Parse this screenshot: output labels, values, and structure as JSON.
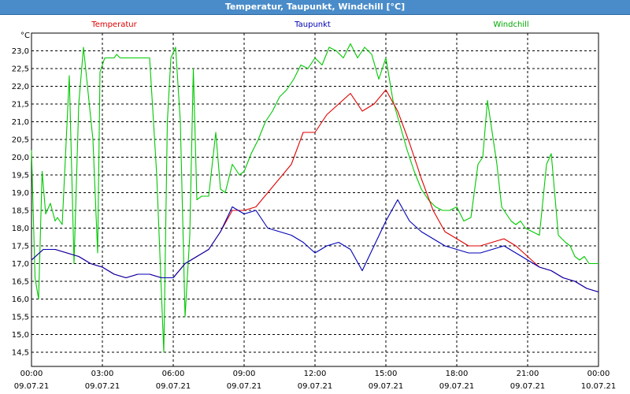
{
  "window": {
    "title": "Temperatur, Taupunkt, Windchill [°C]"
  },
  "chart_data": {
    "type": "line",
    "title": "Temperatur, Taupunkt, Windchill [°C]",
    "ylabel": "°C",
    "ylim": [
      14.1,
      23.5
    ],
    "y_ticks": [
      "14,5",
      "15,0",
      "15,5",
      "16,0",
      "16,5",
      "17,0",
      "17,5",
      "18,0",
      "18,5",
      "19,0",
      "19,5",
      "20,0",
      "20,5",
      "21,0",
      "21,5",
      "22,0",
      "22,5",
      "23,0"
    ],
    "x_range_hours": [
      0,
      24
    ],
    "x_ticks": [
      {
        "time": "00:00",
        "date": "09.07.21"
      },
      {
        "time": "03:00",
        "date": "09.07.21"
      },
      {
        "time": "06:00",
        "date": "09.07.21"
      },
      {
        "time": "09:00",
        "date": "09.07.21"
      },
      {
        "time": "12:00",
        "date": "09.07.21"
      },
      {
        "time": "15:00",
        "date": "09.07.21"
      },
      {
        "time": "18:00",
        "date": "09.07.21"
      },
      {
        "time": "21:00",
        "date": "09.07.21"
      },
      {
        "time": "00:00",
        "date": "10.07.21"
      }
    ],
    "grid": true,
    "legend_position": "top",
    "series": [
      {
        "name": "Temperatur",
        "color": "#e00000",
        "x": [
          0,
          0.5,
          1,
          1.5,
          2,
          2.5,
          3,
          3.5,
          4,
          4.5,
          5,
          5.5,
          6,
          6.5,
          7,
          7.5,
          8,
          8.5,
          9,
          9.5,
          10,
          10.5,
          11,
          11.5,
          12,
          12.5,
          13,
          13.5,
          14,
          14.5,
          15,
          15.5,
          16,
          16.5,
          17,
          17.5,
          18,
          18.5,
          19,
          19.5,
          20,
          20.5,
          21,
          21.5,
          22,
          22.5,
          23,
          23.5,
          24
        ],
        "y": [
          17.1,
          17.4,
          17.4,
          17.3,
          17.2,
          17.0,
          16.9,
          16.7,
          16.6,
          16.7,
          16.7,
          16.6,
          16.6,
          17.0,
          17.2,
          17.4,
          17.9,
          18.5,
          18.5,
          18.6,
          19.0,
          19.4,
          19.8,
          20.7,
          20.7,
          21.2,
          21.5,
          21.8,
          21.3,
          21.5,
          21.9,
          21.3,
          20.4,
          19.4,
          18.5,
          17.9,
          17.7,
          17.5,
          17.5,
          17.6,
          17.7,
          17.5,
          17.2,
          16.9,
          16.8,
          16.6,
          16.5,
          16.3,
          16.2
        ]
      },
      {
        "name": "Taupunkt",
        "color": "#0000b4",
        "x": [
          0,
          0.5,
          1,
          1.5,
          2,
          2.5,
          3,
          3.5,
          4,
          4.5,
          5,
          5.5,
          6,
          6.5,
          7,
          7.5,
          8,
          8.5,
          9,
          9.5,
          10,
          10.5,
          11,
          11.5,
          12,
          12.5,
          13,
          13.5,
          14,
          14.5,
          15,
          15.5,
          16,
          16.5,
          17,
          17.5,
          18,
          18.5,
          19,
          19.5,
          20,
          20.5,
          21,
          21.5,
          22,
          22.5,
          23,
          23.5,
          24
        ],
        "y": [
          17.1,
          17.4,
          17.4,
          17.3,
          17.2,
          17.0,
          16.9,
          16.7,
          16.6,
          16.7,
          16.7,
          16.6,
          16.6,
          17.0,
          17.2,
          17.4,
          17.9,
          18.6,
          18.4,
          18.5,
          18.0,
          17.9,
          17.8,
          17.6,
          17.3,
          17.5,
          17.6,
          17.4,
          16.8,
          17.5,
          18.2,
          18.8,
          18.2,
          17.9,
          17.7,
          17.5,
          17.4,
          17.3,
          17.3,
          17.4,
          17.5,
          17.3,
          17.1,
          16.9,
          16.8,
          16.6,
          16.5,
          16.3,
          16.2
        ]
      },
      {
        "name": "Windchill",
        "color": "#00c800",
        "x": [
          0,
          0.15,
          0.3,
          0.45,
          0.6,
          0.8,
          1.0,
          1.1,
          1.3,
          1.6,
          1.8,
          2.0,
          2.2,
          2.4,
          2.6,
          2.8,
          2.9,
          3.1,
          3.3,
          3.5,
          3.6,
          3.75,
          3.9,
          4.1,
          4.5,
          5.0,
          5.3,
          5.6,
          5.75,
          5.9,
          6.1,
          6.3,
          6.5,
          6.7,
          6.85,
          7.0,
          7.2,
          7.5,
          7.8,
          8.0,
          8.2,
          8.5,
          8.8,
          9.0,
          9.3,
          9.6,
          9.9,
          10.2,
          10.5,
          10.8,
          11.1,
          11.4,
          11.7,
          12.0,
          12.3,
          12.6,
          12.9,
          13.2,
          13.5,
          13.8,
          14.1,
          14.4,
          14.7,
          15.0,
          15.3,
          15.6,
          15.9,
          16.2,
          16.5,
          16.8,
          17.1,
          17.4,
          17.7,
          18.0,
          18.3,
          18.6,
          18.9,
          19.1,
          19.3,
          19.5,
          19.7,
          19.9,
          20.1,
          20.3,
          20.5,
          20.7,
          20.9,
          21.2,
          21.5,
          21.8,
          22.0,
          22.3,
          22.6,
          22.8,
          23.0,
          23.2,
          23.4,
          23.6,
          23.8,
          24.0
        ],
        "y": [
          20.2,
          16.6,
          16.0,
          19.6,
          18.4,
          18.7,
          18.2,
          18.3,
          18.1,
          22.3,
          17.0,
          21.5,
          23.1,
          21.8,
          20.5,
          17.3,
          22.4,
          22.8,
          22.8,
          22.8,
          22.9,
          22.8,
          22.8,
          22.8,
          22.8,
          22.8,
          19.5,
          14.5,
          21.0,
          22.8,
          23.1,
          21.0,
          15.5,
          17.8,
          22.5,
          18.8,
          18.9,
          18.9,
          20.7,
          19.1,
          19.0,
          19.8,
          19.5,
          19.6,
          20.1,
          20.5,
          21.0,
          21.3,
          21.7,
          21.9,
          22.2,
          22.6,
          22.5,
          22.8,
          22.6,
          23.1,
          23.0,
          22.8,
          23.2,
          22.8,
          23.1,
          22.9,
          22.2,
          22.8,
          21.6,
          20.9,
          20.2,
          19.6,
          19.1,
          18.8,
          18.6,
          18.5,
          18.5,
          18.6,
          18.2,
          18.3,
          19.8,
          20.0,
          21.6,
          20.7,
          19.8,
          18.6,
          18.4,
          18.2,
          18.1,
          18.2,
          18.0,
          17.9,
          17.8,
          19.8,
          20.1,
          17.8,
          17.6,
          17.5,
          17.2,
          17.1,
          17.2,
          17.0,
          17.0,
          17.0
        ]
      }
    ]
  }
}
